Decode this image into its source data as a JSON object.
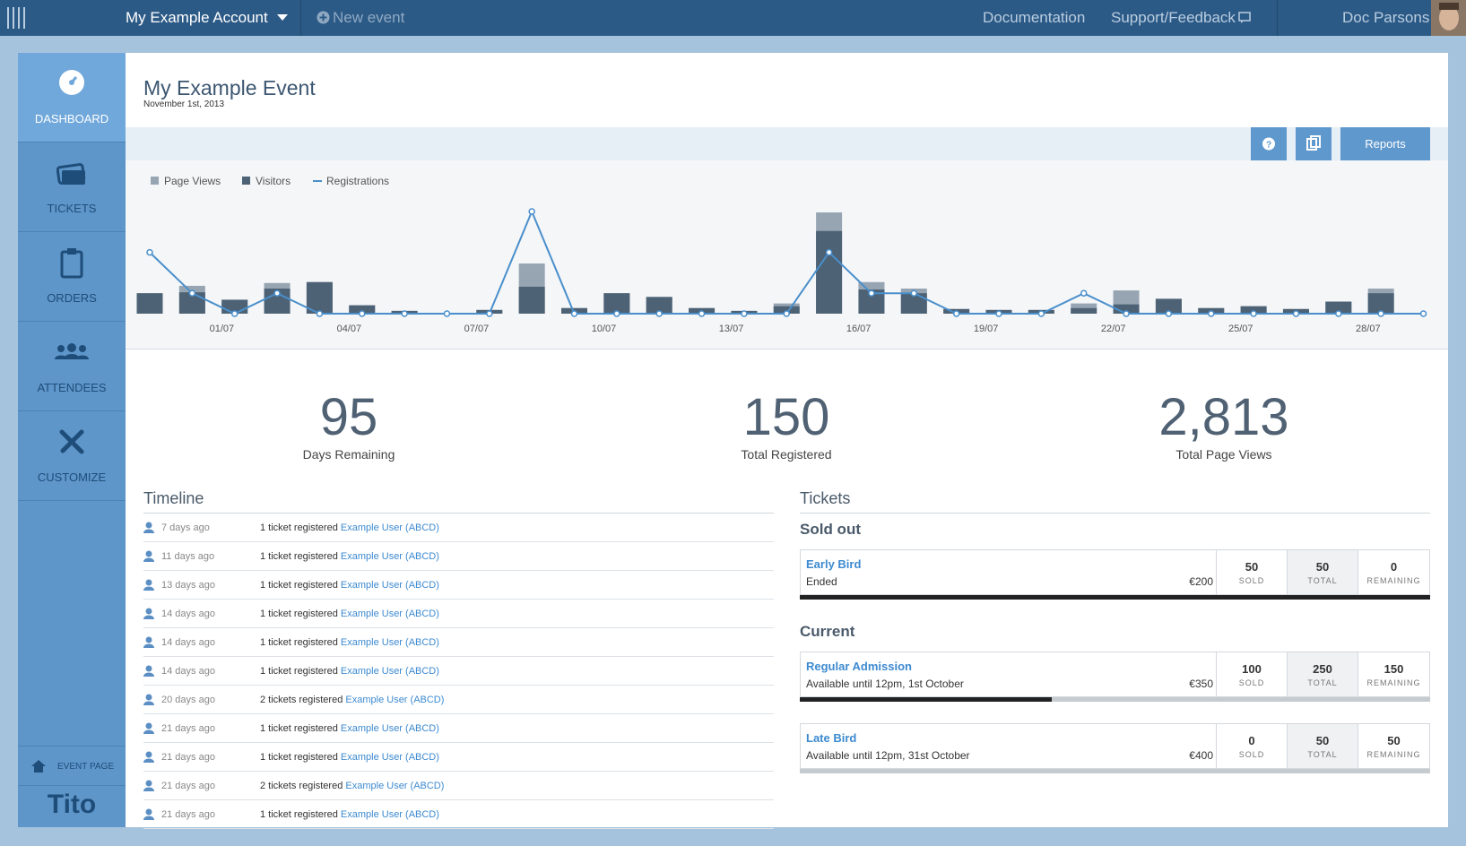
{
  "header": {
    "account": "My Example Account",
    "new_event": "New event",
    "links": [
      "Documentation",
      "Support/Feedback"
    ],
    "user": "Doc Parsons"
  },
  "sidebar": {
    "items": [
      "DASHBOARD",
      "TICKETS",
      "ORDERS",
      "ATTENDEES",
      "CUSTOMIZE"
    ],
    "event_page": "EVENT PAGE",
    "brand": "Tito"
  },
  "event": {
    "title": "My Example Event",
    "date": "November 1st, 2013"
  },
  "toolbar": {
    "reports": "Reports"
  },
  "chart_data": {
    "type": "bar",
    "categories": [
      null,
      "01/07",
      null,
      null,
      "04/07",
      null,
      null,
      "07/07",
      null,
      null,
      "10/07",
      null,
      null,
      "13/07",
      null,
      null,
      "16/07",
      null,
      null,
      "19/07",
      null,
      null,
      "22/07",
      null,
      null,
      "25/07",
      null,
      null,
      "28/07",
      null,
      null
    ],
    "series": [
      {
        "name": "Page Views",
        "color": "#97a5b3",
        "values": [
          22,
          30,
          15,
          33,
          34,
          9,
          3,
          0,
          4,
          54,
          6,
          22,
          18,
          6,
          3,
          11,
          109,
          34,
          27,
          5,
          4,
          4,
          11,
          25,
          16,
          6,
          8,
          5,
          13,
          27,
          0
        ]
      },
      {
        "name": "Visitors",
        "color": "#4d6275",
        "values": [
          22,
          23,
          15,
          27,
          34,
          9,
          3,
          0,
          4,
          29,
          6,
          22,
          18,
          6,
          3,
          8,
          89,
          26,
          22,
          5,
          4,
          4,
          6,
          10,
          16,
          6,
          8,
          5,
          13,
          22,
          0
        ]
      },
      {
        "name": "Registrations",
        "type": "line",
        "axis": "y2",
        "color": "#4a8fcb",
        "values": [
          3,
          1,
          0,
          1,
          0,
          0,
          0,
          0,
          0,
          5,
          0,
          0,
          0,
          0,
          0,
          0,
          3,
          1,
          1,
          0,
          0,
          0,
          1,
          0,
          0,
          0,
          0,
          0,
          0,
          0,
          0
        ]
      }
    ],
    "ylim": [
      0,
      110
    ],
    "y2lim": [
      0,
      5
    ],
    "grid": false
  },
  "stats": [
    {
      "value": "95",
      "label": "Days Remaining"
    },
    {
      "value": "150",
      "label": "Total Registered"
    },
    {
      "value": "2,813",
      "label": "Total Page Views"
    }
  ],
  "timeline": {
    "title": "Timeline",
    "rows": [
      {
        "time": "7 days ago",
        "text": "1 ticket registered",
        "user": "Example User (ABCD)"
      },
      {
        "time": "11 days ago",
        "text": "1 ticket registered",
        "user": "Example User (ABCD)"
      },
      {
        "time": "13 days ago",
        "text": "1 ticket registered",
        "user": "Example User (ABCD)"
      },
      {
        "time": "14 days ago",
        "text": "1 ticket registered",
        "user": "Example User (ABCD)"
      },
      {
        "time": "14 days ago",
        "text": "1 ticket registered",
        "user": "Example User (ABCD)"
      },
      {
        "time": "14 days ago",
        "text": "1 ticket registered",
        "user": "Example User (ABCD)"
      },
      {
        "time": "20 days ago",
        "text": "2 tickets registered",
        "user": "Example User (ABCD)"
      },
      {
        "time": "21 days ago",
        "text": "1 ticket registered",
        "user": "Example User (ABCD)"
      },
      {
        "time": "21 days ago",
        "text": "1 ticket registered",
        "user": "Example User (ABCD)"
      },
      {
        "time": "21 days ago",
        "text": "2 tickets registered",
        "user": "Example User (ABCD)"
      },
      {
        "time": "21 days ago",
        "text": "1 ticket registered",
        "user": "Example User (ABCD)"
      }
    ]
  },
  "tickets": {
    "title": "Tickets",
    "labels": {
      "sold": "SOLD",
      "total": "TOTAL",
      "remaining": "REMAINING"
    },
    "groups": [
      {
        "title": "Sold out",
        "items": [
          {
            "name": "Early Bird",
            "status": "Ended",
            "price": "€200",
            "sold": 50,
            "total": 50,
            "remaining": 0
          }
        ]
      },
      {
        "title": "Current",
        "items": [
          {
            "name": "Regular Admission",
            "status": "Available until 12pm, 1st October",
            "price": "€350",
            "sold": 100,
            "total": 250,
            "remaining": 150
          },
          {
            "name": "Late Bird",
            "status": "Available until 12pm, 31st October",
            "price": "€400",
            "sold": 0,
            "total": 50,
            "remaining": 50
          }
        ]
      }
    ]
  }
}
